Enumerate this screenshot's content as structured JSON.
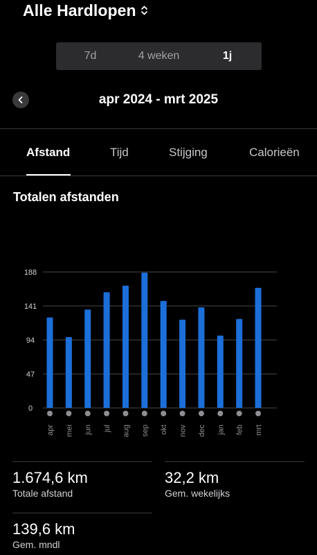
{
  "header": {
    "title": "Alle Hardlopen",
    "chevron_icon": "chevron-up-down-icon"
  },
  "segments": [
    {
      "label": "7d",
      "active": false
    },
    {
      "label": "4 weken",
      "active": false
    },
    {
      "label": "1j",
      "active": true
    }
  ],
  "period": {
    "label": "apr 2024 - mrt 2025",
    "back_icon": "chevron-left-icon"
  },
  "tabs": [
    {
      "label": "Afstand",
      "active": true
    },
    {
      "label": "Tijd",
      "active": false
    },
    {
      "label": "Stijging",
      "active": false
    },
    {
      "label": "Calorieën",
      "active": false
    }
  ],
  "section_title": "Totalen afstanden",
  "colors": {
    "accent": "#1c6fd9",
    "background": "#000000",
    "segment_bg": "#2c2c2e"
  },
  "chart_data": {
    "type": "bar",
    "categories": [
      "apr",
      "mei",
      "jun",
      "jul",
      "aug",
      "sep",
      "okt",
      "nov",
      "dec",
      "jan",
      "feb",
      "mrt"
    ],
    "values": [
      125,
      98,
      136,
      160,
      169,
      187,
      148,
      122,
      139,
      100,
      123,
      166
    ],
    "y_ticks": [
      "0",
      "47",
      "94",
      "141",
      "188"
    ],
    "y_tick_values": [
      0,
      47,
      94,
      141,
      188
    ],
    "ylim": [
      0,
      188
    ],
    "grid": true,
    "title": "Totalen afstanden",
    "xlabel": "",
    "ylabel": ""
  },
  "stats": [
    {
      "value": "1.674,6 km",
      "label": "Totale afstand"
    },
    {
      "value": "32,2 km",
      "label": "Gem. wekelijks"
    },
    {
      "value": "139,6 km",
      "label": "Gem. mndl"
    }
  ]
}
